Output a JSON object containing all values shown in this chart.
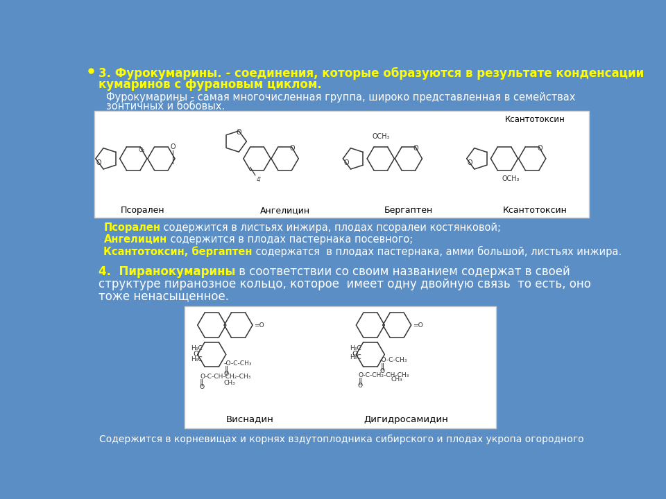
{
  "bg_color": "#5b8ec5",
  "title_line1": "3. Фурокумарины. - соединения, которые образуются в результате конденсации",
  "title_line2": "кумаринов с фурановым циклом.",
  "subtitle_line1": "Фурокумарины - самая многочисленная группа, широко представленная в семействах",
  "subtitle_line2": "зонтичных и бобовых.",
  "box1_label_ksanto": "Ксантотоксин",
  "label_psoralen": "Псорален",
  "label_angelicin": "Ангелицин",
  "label_bergapten": "Бергаптен",
  "label_ksantotoksin": "Ксантотоксин",
  "info1a_bold": "Псорален",
  "info1a_rest": " содержится в листьях инжира, плодах псоралеи костянковой;",
  "info1b_bold": "Ангелицин",
  "info1b_rest": " содержится в плодах пастернака посевного;",
  "info1c_bold": "Ксантотоксин, бергаптен",
  "info1c_rest": " содержатся  в плодах пастернака, амми большой, листьях инжира.",
  "sec4_bold": "4.  Пиранокумарины",
  "sec4_line1_rest": " в соответствии со своим названием содержат в своей",
  "sec4_line2": "структуре пиранозное кольцо, которое  имеет одну двойную связь  то есть, оно",
  "sec4_line3": "тоже ненасыщенное.",
  "label_visnadin": "Виснадин",
  "label_digidrosamid": "Дигидросамидин",
  "footer": "Содержится в корневищах и корнях вздутоплодника сибирского и плодах укропа огородного",
  "yellow": "#ffff00",
  "white": "#ffffff",
  "black": "#000000",
  "bg": "#5b8ec5"
}
